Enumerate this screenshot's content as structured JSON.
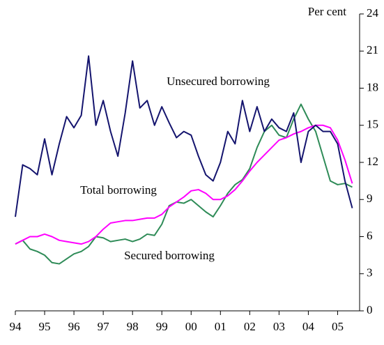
{
  "chart_data": {
    "type": "line",
    "y_axis_label": "Per cent",
    "annotations": [
      "Unsecured borrowing",
      "Total borrowing",
      "Secured borrowing"
    ],
    "x": [
      1994,
      1994.25,
      1994.5,
      1994.75,
      1995,
      1995.25,
      1995.5,
      1995.75,
      1996,
      1996.25,
      1996.5,
      1996.75,
      1997,
      1997.25,
      1997.5,
      1997.75,
      1998,
      1998.25,
      1998.5,
      1998.75,
      1999,
      1999.25,
      1999.5,
      1999.75,
      2000,
      2000.25,
      2000.5,
      2000.75,
      2001,
      2001.25,
      2001.5,
      2001.75,
      2002,
      2002.25,
      2002.5,
      2002.75,
      2003,
      2003.25,
      2003.5,
      2003.75,
      2004,
      2004.25,
      2004.5,
      2004.75,
      2005,
      2005.25,
      2005.5
    ],
    "series": [
      {
        "name": "Unsecured borrowing",
        "color": "#14146e",
        "values": [
          7.6,
          11.8,
          11.5,
          11.0,
          13.9,
          11.0,
          13.5,
          15.7,
          14.8,
          15.8,
          20.6,
          15.0,
          17.0,
          14.5,
          12.5,
          16.0,
          20.2,
          16.4,
          17.0,
          15.0,
          16.5,
          15.2,
          14.0,
          14.5,
          14.2,
          12.5,
          11.0,
          10.5,
          12.0,
          14.5,
          13.5,
          17.0,
          14.5,
          16.5,
          14.5,
          15.5,
          14.8,
          14.5,
          16.0,
          12.0,
          14.5,
          15.0,
          14.5,
          14.5,
          13.5,
          10.5,
          8.3
        ]
      },
      {
        "name": "Total borrowing",
        "color": "#ff00ff",
        "values": [
          5.4,
          5.7,
          6.0,
          6.0,
          6.2,
          6.0,
          5.7,
          5.6,
          5.5,
          5.4,
          5.6,
          6.0,
          6.6,
          7.1,
          7.2,
          7.3,
          7.3,
          7.4,
          7.5,
          7.5,
          7.8,
          8.4,
          8.8,
          9.2,
          9.7,
          9.8,
          9.5,
          9.0,
          9.0,
          9.3,
          9.8,
          10.5,
          11.3,
          12.0,
          12.6,
          13.2,
          13.8,
          14.0,
          14.3,
          14.5,
          14.8,
          15.0,
          15.0,
          14.8,
          13.8,
          12.2,
          10.3
        ]
      },
      {
        "name": "Secured borrowing",
        "color": "#2e8b57",
        "values": [
          5.4,
          5.7,
          5.0,
          4.8,
          4.5,
          3.9,
          3.8,
          4.2,
          4.6,
          4.8,
          5.2,
          6.0,
          5.9,
          5.6,
          5.7,
          5.8,
          5.6,
          5.8,
          6.2,
          6.1,
          7.0,
          8.5,
          8.8,
          8.7,
          9.0,
          8.5,
          8.0,
          7.6,
          8.5,
          9.5,
          10.2,
          10.6,
          11.5,
          13.2,
          14.5,
          15.0,
          14.2,
          14.0,
          15.5,
          16.7,
          15.5,
          14.5,
          12.5,
          10.5,
          10.2,
          10.3,
          10.0
        ]
      }
    ],
    "xlim": [
      1994,
      2005.75
    ],
    "xticks": [
      {
        "value": 1994,
        "label": "94"
      },
      {
        "value": 1995,
        "label": "95"
      },
      {
        "value": 1996,
        "label": "96"
      },
      {
        "value": 1997,
        "label": "97"
      },
      {
        "value": 1998,
        "label": "98"
      },
      {
        "value": 1999,
        "label": "99"
      },
      {
        "value": 2000,
        "label": "00"
      },
      {
        "value": 2001,
        "label": "01"
      },
      {
        "value": 2002,
        "label": "02"
      },
      {
        "value": 2003,
        "label": "03"
      },
      {
        "value": 2004,
        "label": "04"
      },
      {
        "value": 2005,
        "label": "05"
      }
    ],
    "ylim": [
      0,
      24
    ],
    "yticks": [
      0,
      3,
      6,
      9,
      12,
      15,
      18,
      21,
      24
    ]
  }
}
